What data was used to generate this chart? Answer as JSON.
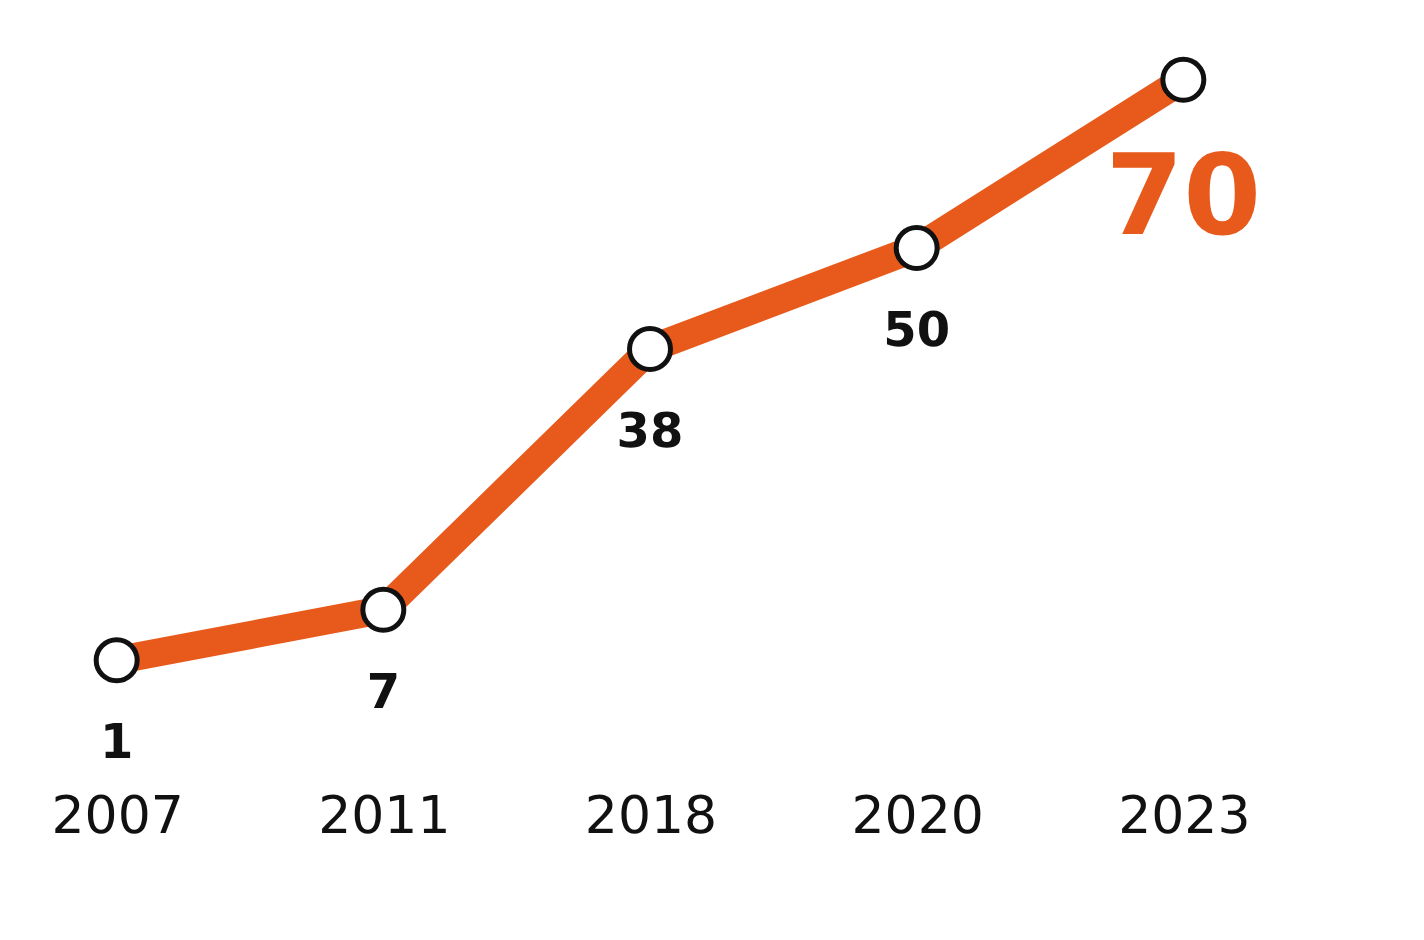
{
  "chart_data": {
    "type": "line",
    "categories": [
      "2007",
      "2011",
      "2018",
      "2020",
      "2023"
    ],
    "series": [
      {
        "color": "#e85a1b",
        "values": [
          1,
          7,
          38,
          50,
          70
        ]
      }
    ],
    "data_labels": true,
    "marker": "circle",
    "grid": false
  }
}
